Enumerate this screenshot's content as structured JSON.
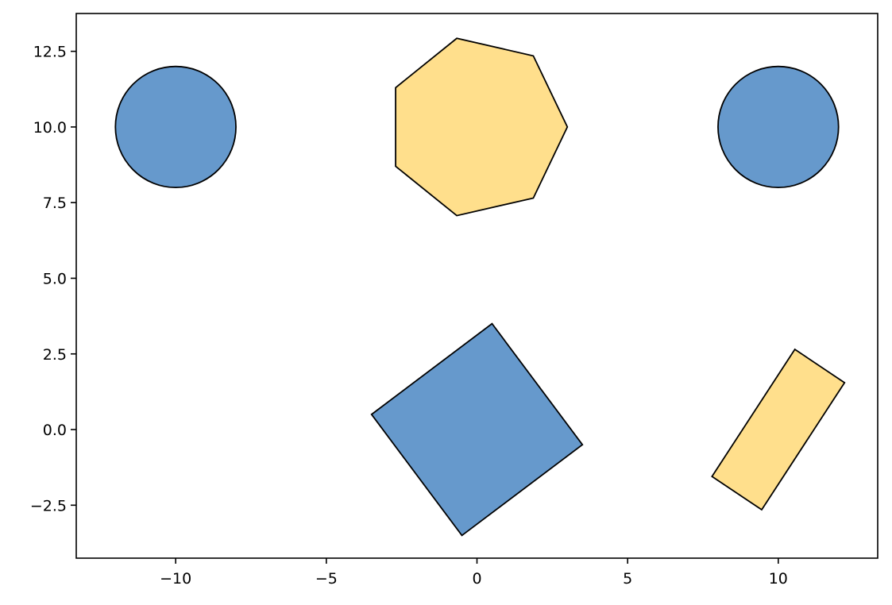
{
  "chart_data": {
    "type": "scatter",
    "title": "",
    "xlabel": "",
    "ylabel": "",
    "xlim": [
      -13.3,
      13.3
    ],
    "ylim": [
      -4.25,
      13.75
    ],
    "xticks": [
      -10,
      -5,
      0,
      5,
      10
    ],
    "xtick_labels": [
      "−10",
      "−5",
      "0",
      "5",
      "10"
    ],
    "yticks": [
      -2.5,
      0.0,
      2.5,
      5.0,
      7.5,
      10.0,
      12.5
    ],
    "ytick_labels": [
      "−2.5",
      "0.0",
      "2.5",
      "5.0",
      "7.5",
      "10.0",
      "12.5"
    ],
    "grid": false,
    "legend": "none",
    "colors": {
      "blue": "#6699cc",
      "yellow": "#ffdf8c",
      "edge": "#000000"
    },
    "shapes": [
      {
        "name": "circle-left",
        "kind": "circle",
        "center": [
          -10,
          10
        ],
        "radius": 2,
        "color": "#6699cc"
      },
      {
        "name": "circle-right",
        "kind": "circle",
        "center": [
          10,
          10
        ],
        "radius": 2,
        "color": "#6699cc"
      },
      {
        "name": "heptagon",
        "kind": "polygon",
        "color": "#ffdf8c",
        "points": [
          [
            3.0,
            10.0
          ],
          [
            1.87,
            12.35
          ],
          [
            -0.67,
            12.93
          ],
          [
            -2.7,
            11.3
          ],
          [
            -2.7,
            8.7
          ],
          [
            -0.67,
            7.07
          ],
          [
            1.87,
            7.65
          ]
        ]
      },
      {
        "name": "square",
        "kind": "polygon",
        "color": "#6699cc",
        "points": [
          [
            0.5,
            3.5
          ],
          [
            3.5,
            -0.5
          ],
          [
            -0.5,
            -3.5
          ],
          [
            -3.5,
            0.5
          ]
        ]
      },
      {
        "name": "rectangle",
        "kind": "polygon",
        "color": "#ffdf8c",
        "points": [
          [
            10.55,
            2.65
          ],
          [
            12.2,
            1.55
          ],
          [
            9.45,
            -2.65
          ],
          [
            7.8,
            -1.55
          ]
        ]
      }
    ]
  }
}
